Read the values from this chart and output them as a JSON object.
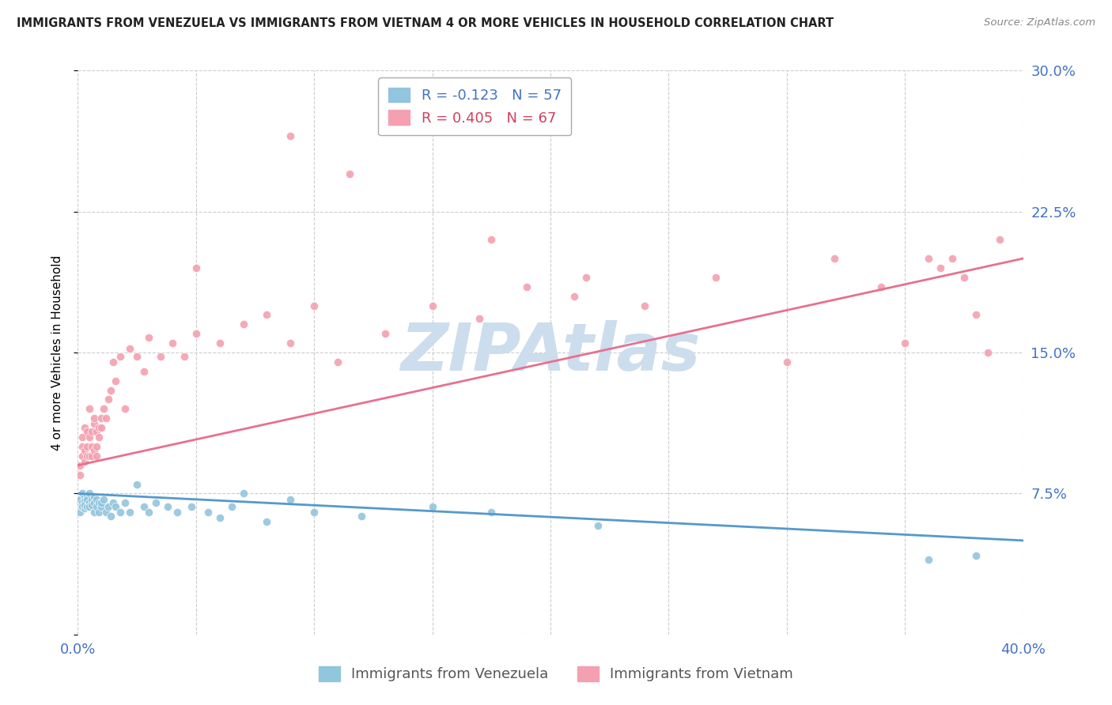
{
  "title": "IMMIGRANTS FROM VENEZUELA VS IMMIGRANTS FROM VIETNAM 4 OR MORE VEHICLES IN HOUSEHOLD CORRELATION CHART",
  "source": "Source: ZipAtlas.com",
  "ylabel": "4 or more Vehicles in Household",
  "xlim": [
    0.0,
    0.4
  ],
  "ylim": [
    0.0,
    0.3
  ],
  "xticks": [
    0.0,
    0.05,
    0.1,
    0.15,
    0.2,
    0.25,
    0.3,
    0.35,
    0.4
  ],
  "yticks": [
    0.0,
    0.075,
    0.15,
    0.225,
    0.3
  ],
  "venezuela_R": -0.123,
  "venezuela_N": 57,
  "vietnam_R": 0.405,
  "vietnam_N": 67,
  "venezuela_color": "#92c5de",
  "vietnam_color": "#f4a0b0",
  "venezuela_line_color": "#5599cc",
  "vietnam_line_color": "#e87090",
  "watermark": "ZIPAtlas",
  "watermark_color": "#ccdded",
  "venezuela_x": [
    0.001,
    0.001,
    0.001,
    0.002,
    0.002,
    0.002,
    0.002,
    0.003,
    0.003,
    0.003,
    0.003,
    0.004,
    0.004,
    0.004,
    0.005,
    0.005,
    0.005,
    0.006,
    0.006,
    0.007,
    0.007,
    0.007,
    0.008,
    0.008,
    0.009,
    0.009,
    0.01,
    0.01,
    0.011,
    0.012,
    0.013,
    0.014,
    0.015,
    0.016,
    0.018,
    0.02,
    0.022,
    0.025,
    0.028,
    0.03,
    0.033,
    0.038,
    0.042,
    0.048,
    0.055,
    0.06,
    0.065,
    0.07,
    0.08,
    0.09,
    0.1,
    0.12,
    0.15,
    0.175,
    0.22,
    0.36,
    0.38
  ],
  "venezuela_y": [
    0.07,
    0.065,
    0.072,
    0.068,
    0.075,
    0.07,
    0.068,
    0.073,
    0.067,
    0.071,
    0.069,
    0.074,
    0.068,
    0.072,
    0.075,
    0.07,
    0.068,
    0.072,
    0.069,
    0.073,
    0.065,
    0.07,
    0.072,
    0.068,
    0.07,
    0.065,
    0.068,
    0.07,
    0.072,
    0.065,
    0.068,
    0.063,
    0.07,
    0.068,
    0.065,
    0.07,
    0.065,
    0.08,
    0.068,
    0.065,
    0.07,
    0.068,
    0.065,
    0.068,
    0.065,
    0.062,
    0.068,
    0.075,
    0.06,
    0.072,
    0.065,
    0.063,
    0.068,
    0.065,
    0.058,
    0.04,
    0.042
  ],
  "vietnam_x": [
    0.001,
    0.001,
    0.002,
    0.002,
    0.002,
    0.003,
    0.003,
    0.003,
    0.004,
    0.004,
    0.004,
    0.005,
    0.005,
    0.005,
    0.006,
    0.006,
    0.006,
    0.007,
    0.007,
    0.007,
    0.008,
    0.008,
    0.008,
    0.009,
    0.009,
    0.01,
    0.01,
    0.011,
    0.012,
    0.013,
    0.014,
    0.015,
    0.016,
    0.018,
    0.02,
    0.022,
    0.025,
    0.028,
    0.03,
    0.035,
    0.04,
    0.045,
    0.05,
    0.06,
    0.07,
    0.08,
    0.09,
    0.1,
    0.11,
    0.13,
    0.15,
    0.17,
    0.19,
    0.21,
    0.24,
    0.27,
    0.3,
    0.32,
    0.34,
    0.35,
    0.36,
    0.365,
    0.37,
    0.375,
    0.38,
    0.385,
    0.39
  ],
  "vietnam_y": [
    0.09,
    0.085,
    0.1,
    0.095,
    0.105,
    0.098,
    0.11,
    0.092,
    0.1,
    0.108,
    0.095,
    0.105,
    0.12,
    0.095,
    0.1,
    0.108,
    0.095,
    0.112,
    0.098,
    0.115,
    0.1,
    0.108,
    0.095,
    0.11,
    0.105,
    0.115,
    0.11,
    0.12,
    0.115,
    0.125,
    0.13,
    0.145,
    0.135,
    0.148,
    0.12,
    0.152,
    0.148,
    0.14,
    0.158,
    0.148,
    0.155,
    0.148,
    0.16,
    0.155,
    0.165,
    0.17,
    0.155,
    0.175,
    0.145,
    0.16,
    0.175,
    0.168,
    0.185,
    0.18,
    0.175,
    0.19,
    0.145,
    0.2,
    0.185,
    0.155,
    0.2,
    0.195,
    0.2,
    0.19,
    0.17,
    0.15,
    0.21
  ],
  "vietnam_high_x": [
    0.05,
    0.09,
    0.115,
    0.14,
    0.175,
    0.215
  ],
  "vietnam_high_y": [
    0.195,
    0.265,
    0.245,
    0.285,
    0.21,
    0.19
  ]
}
